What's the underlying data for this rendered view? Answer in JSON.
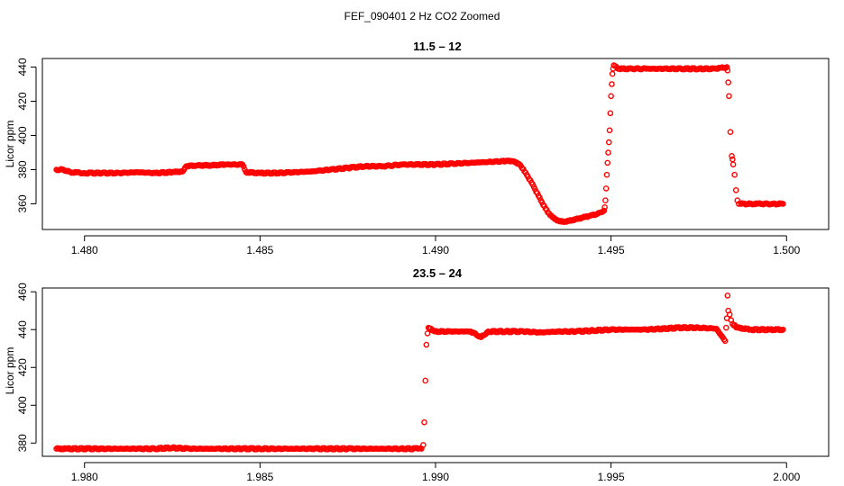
{
  "figure": {
    "title": "FEF_090401  2 Hz CO2 Zoomed",
    "point_color": "#ff0000"
  },
  "chart_data": [
    {
      "type": "scatter",
      "title": "11.5 – 12",
      "xlabel": "",
      "ylabel": "Licor ppm",
      "xlim": [
        1.4788,
        1.5012
      ],
      "ylim": [
        345,
        445
      ],
      "xticks": [
        1.48,
        1.485,
        1.49,
        1.495,
        1.5
      ],
      "xtick_labels": [
        "1.480",
        "1.485",
        "1.490",
        "1.495",
        "1.500"
      ],
      "yticks": [
        360,
        380,
        400,
        420,
        440
      ],
      "ytick_labels": [
        "360",
        "380",
        "400",
        "420",
        "440"
      ],
      "grid": false,
      "series": [
        {
          "points": [
            [
              1.4792,
              380
            ],
            [
              1.4794,
              380
            ],
            [
              1.4796,
              378.5
            ],
            [
              1.48,
              378
            ],
            [
              1.4805,
              378
            ],
            [
              1.481,
              378
            ],
            [
              1.4815,
              378.5
            ],
            [
              1.482,
              378
            ],
            [
              1.4825,
              378.5
            ],
            [
              1.4828,
              379
            ],
            [
              1.4829,
              382
            ],
            [
              1.4832,
              382.5
            ],
            [
              1.4836,
              382.5
            ],
            [
              1.484,
              383
            ],
            [
              1.4845,
              383
            ],
            [
              1.4846,
              378.5
            ],
            [
              1.485,
              378
            ],
            [
              1.4855,
              378
            ],
            [
              1.486,
              378.5
            ],
            [
              1.4865,
              379
            ],
            [
              1.487,
              380
            ],
            [
              1.4875,
              381
            ],
            [
              1.488,
              382
            ],
            [
              1.4885,
              382
            ],
            [
              1.4888,
              382.5
            ],
            [
              1.489,
              383
            ],
            [
              1.4895,
              383
            ],
            [
              1.49,
              383
            ],
            [
              1.4905,
              383.5
            ],
            [
              1.491,
              384
            ],
            [
              1.4915,
              384.5
            ],
            [
              1.492,
              385
            ],
            [
              1.4922,
              385
            ],
            [
              1.4924,
              383
            ],
            [
              1.4926,
              377
            ],
            [
              1.4928,
              370
            ],
            [
              1.493,
              362
            ],
            [
              1.4932,
              355
            ],
            [
              1.4934,
              351
            ],
            [
              1.4936,
              349.5
            ],
            [
              1.4938,
              350
            ],
            [
              1.494,
              351
            ],
            [
              1.4942,
              352
            ],
            [
              1.4944,
              353
            ],
            [
              1.4946,
              354
            ],
            [
              1.4947,
              355
            ],
            [
              1.4948,
              356
            ],
            [
              1.49482,
              358
            ],
            [
              1.49484,
              362
            ],
            [
              1.49486,
              369
            ],
            [
              1.49488,
              377
            ],
            [
              1.4949,
              384
            ],
            [
              1.49492,
              390
            ],
            [
              1.49494,
              396
            ],
            [
              1.49496,
              403
            ],
            [
              1.49498,
              413
            ],
            [
              1.495,
              423
            ],
            [
              1.49502,
              430
            ],
            [
              1.49504,
              436
            ],
            [
              1.49506,
              439
            ],
            [
              1.49508,
              441
            ],
            [
              1.4952,
              439
            ],
            [
              1.4956,
              439
            ],
            [
              1.496,
              439
            ],
            [
              1.4965,
              439
            ],
            [
              1.497,
              439
            ],
            [
              1.4975,
              439
            ],
            [
              1.498,
              439
            ],
            [
              1.4983,
              440
            ],
            [
              1.49832,
              438
            ],
            [
              1.49834,
              431
            ],
            [
              1.49836,
              423
            ],
            [
              1.4984,
              402
            ],
            [
              1.49844,
              388
            ],
            [
              1.49846,
              386
            ],
            [
              1.49848,
              383
            ],
            [
              1.49852,
              377
            ],
            [
              1.49856,
              368
            ],
            [
              1.4986,
              362
            ],
            [
              1.49864,
              360
            ],
            [
              1.4987,
              360
            ],
            [
              1.499,
              360
            ],
            [
              1.4993,
              360
            ],
            [
              1.4996,
              360
            ],
            [
              1.4999,
              360
            ]
          ]
        }
      ]
    },
    {
      "type": "scatter",
      "title": "23.5 – 24",
      "xlabel": "",
      "ylabel": "Licor ppm",
      "xlim": [
        1.9788,
        2.0012
      ],
      "ylim": [
        373,
        462
      ],
      "xticks": [
        1.98,
        1.985,
        1.99,
        1.995,
        2.0
      ],
      "xtick_labels": [
        "1.980",
        "1.985",
        "1.990",
        "1.995",
        "2.000"
      ],
      "yticks": [
        380,
        400,
        420,
        440,
        460
      ],
      "ytick_labels": [
        "380",
        "400",
        "420",
        "440",
        "460"
      ],
      "grid": false,
      "series": [
        {
          "points": [
            [
              1.9792,
              377
            ],
            [
              1.9795,
              377
            ],
            [
              1.98,
              377
            ],
            [
              1.9805,
              377
            ],
            [
              1.981,
              377
            ],
            [
              1.9815,
              377
            ],
            [
              1.982,
              377
            ],
            [
              1.9825,
              377.5
            ],
            [
              1.983,
              377
            ],
            [
              1.9835,
              377
            ],
            [
              1.984,
              377
            ],
            [
              1.9845,
              377
            ],
            [
              1.985,
              377
            ],
            [
              1.9855,
              377
            ],
            [
              1.986,
              377
            ],
            [
              1.9865,
              377
            ],
            [
              1.987,
              377
            ],
            [
              1.9875,
              377
            ],
            [
              1.988,
              377
            ],
            [
              1.9885,
              377
            ],
            [
              1.989,
              377
            ],
            [
              1.9895,
              377
            ],
            [
              1.9896,
              377
            ],
            [
              1.98965,
              379
            ],
            [
              1.98968,
              391
            ],
            [
              1.98971,
              413
            ],
            [
              1.98974,
              432
            ],
            [
              1.98977,
              438
            ],
            [
              1.9898,
              441
            ],
            [
              1.99,
              439
            ],
            [
              1.9905,
              439
            ],
            [
              1.991,
              439
            ],
            [
              1.9913,
              436
            ],
            [
              1.9915,
              439
            ],
            [
              1.992,
              439
            ],
            [
              1.9925,
              439
            ],
            [
              1.993,
              438.5
            ],
            [
              1.9935,
              439
            ],
            [
              1.994,
              439
            ],
            [
              1.9945,
              439.5
            ],
            [
              1.995,
              440
            ],
            [
              1.9955,
              440
            ],
            [
              1.996,
              440
            ],
            [
              1.9965,
              440.5
            ],
            [
              1.997,
              441
            ],
            [
              1.9975,
              441
            ],
            [
              1.998,
              440.5
            ],
            [
              1.99825,
              434
            ],
            [
              1.99828,
              441
            ],
            [
              1.9983,
              446
            ],
            [
              1.99832,
              458
            ],
            [
              1.99834,
              450
            ],
            [
              1.99838,
              448
            ],
            [
              1.99842,
              445
            ],
            [
              1.99846,
              443
            ],
            [
              1.9986,
              441
            ],
            [
              1.999,
              440
            ],
            [
              1.9995,
              440
            ],
            [
              1.9999,
              440
            ]
          ]
        }
      ]
    }
  ]
}
